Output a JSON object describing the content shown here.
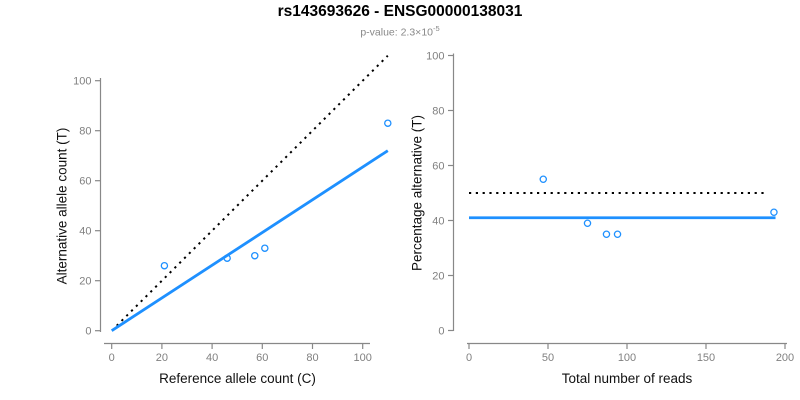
{
  "header": {
    "title": "rs143693626 - ENSG00000138031",
    "p_value_base": "p-value: 2.3×10",
    "p_value_exponent": "-5"
  },
  "colors": {
    "accent_blue": "#1E90FF",
    "dotted_black": "#000000",
    "axis_gray": "#888888",
    "tick_label_gray": "#808080",
    "subtitle_gray": "#888888",
    "title_black": "#000000"
  },
  "chart_data": [
    {
      "name": "allele-counts-scatter",
      "type": "scatter",
      "xlabel": "Reference allele count (C)",
      "ylabel": "Alternative allele count (T)",
      "xlim": [
        0,
        110
      ],
      "ylim": [
        0,
        110
      ],
      "xticks": [
        0,
        20,
        40,
        60,
        80,
        100
      ],
      "yticks": [
        0,
        20,
        40,
        60,
        80,
        100
      ],
      "grid": false,
      "legend": false,
      "points": [
        [
          21,
          26
        ],
        [
          46,
          29
        ],
        [
          57,
          30
        ],
        [
          61,
          33
        ],
        [
          110,
          83
        ]
      ],
      "lines": [
        {
          "name": "identity-line",
          "style": "dotted",
          "color": "#000000",
          "from": [
            2,
            2
          ],
          "to": [
            110,
            110
          ]
        },
        {
          "name": "regression-line",
          "style": "solid",
          "color": "#1E90FF",
          "from": [
            0,
            0
          ],
          "to": [
            110,
            72
          ]
        }
      ]
    },
    {
      "name": "percentage-vs-reads-scatter",
      "type": "scatter",
      "xlabel": "Total number of reads",
      "ylabel": "Percentage alternative (T)",
      "xlim": [
        0,
        200
      ],
      "ylim": [
        0,
        100
      ],
      "xticks": [
        0,
        50,
        100,
        150,
        200
      ],
      "yticks": [
        0,
        20,
        40,
        60,
        80,
        100
      ],
      "grid": false,
      "legend": false,
      "points": [
        [
          47,
          55
        ],
        [
          75,
          39
        ],
        [
          87,
          35
        ],
        [
          94,
          35
        ],
        [
          193,
          43
        ]
      ],
      "lines": [
        {
          "name": "expected-50-percent-line",
          "style": "dotted",
          "color": "#000000",
          "from": [
            0,
            50
          ],
          "to": [
            189,
            50
          ]
        },
        {
          "name": "mean-percentage-line",
          "style": "solid",
          "color": "#1E90FF",
          "from": [
            0,
            41
          ],
          "to": [
            194,
            41
          ]
        }
      ]
    }
  ]
}
